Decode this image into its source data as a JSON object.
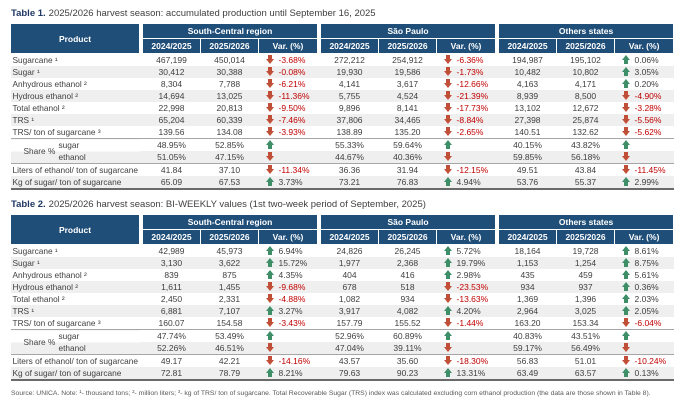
{
  "colors": {
    "header_bg": "#1F4E79",
    "positive_arrow": "#3E8E68",
    "negative_arrow": "#C14E36",
    "negative_text": "#C00000",
    "row_stripe": "#EFEFEF",
    "title_label": "#1F3864"
  },
  "icons": {
    "positive": "up-arrow-icon",
    "negative": "down-arrow-icon"
  },
  "footnote": "Source: UNICA. Note: ¹- thousand tons; ²- million liters; ³- kg of TRS/ ton of sugarcane. Total Recoverable Sugar (TRS) index was calculated excluding corn ethanol production (the data are those shown in Table 8).",
  "tables": [
    {
      "title_label": "Table 1.",
      "title_text": "2025/2026 harvest season: accumulated production until September 16, 2025",
      "product_header": "Product",
      "regions": [
        "South-Central region",
        "São Paulo",
        "Others states"
      ],
      "col_headers": [
        "2024/2025",
        "2025/2026",
        "Var. (%)"
      ],
      "rows": [
        {
          "label": "Sugarcane ¹",
          "regions": [
            {
              "y1": "467,199",
              "y2": "450,014",
              "dir": "down",
              "var": "-3.68%"
            },
            {
              "y1": "272,212",
              "y2": "254,912",
              "dir": "down",
              "var": "-6.36%"
            },
            {
              "y1": "194,987",
              "y2": "195,102",
              "dir": "up",
              "var": "0.06%"
            }
          ]
        },
        {
          "label": "Sugar ¹",
          "regions": [
            {
              "y1": "30,412",
              "y2": "30,388",
              "dir": "down",
              "var": "-0.08%"
            },
            {
              "y1": "19,930",
              "y2": "19,586",
              "dir": "down",
              "var": "-1.73%"
            },
            {
              "y1": "10,482",
              "y2": "10,802",
              "dir": "up",
              "var": "3.05%"
            }
          ]
        },
        {
          "label": "Anhydrous ethanol ²",
          "regions": [
            {
              "y1": "8,304",
              "y2": "7,788",
              "dir": "down",
              "var": "-6.21%"
            },
            {
              "y1": "4,141",
              "y2": "3,617",
              "dir": "down",
              "var": "-12.66%"
            },
            {
              "y1": "4,163",
              "y2": "4,171",
              "dir": "up",
              "var": "0.20%"
            }
          ]
        },
        {
          "label": "Hydrous ethanol ²",
          "regions": [
            {
              "y1": "14,694",
              "y2": "13,025",
              "dir": "down",
              "var": "-11.36%"
            },
            {
              "y1": "5,755",
              "y2": "4,524",
              "dir": "down",
              "var": "-21.39%"
            },
            {
              "y1": "8,939",
              "y2": "8,500",
              "dir": "down",
              "var": "-4.90%"
            }
          ]
        },
        {
          "label": "Total ethanol ²",
          "regions": [
            {
              "y1": "22,998",
              "y2": "20,813",
              "dir": "down",
              "var": "-9.50%"
            },
            {
              "y1": "9,896",
              "y2": "8,141",
              "dir": "down",
              "var": "-17.73%"
            },
            {
              "y1": "13,102",
              "y2": "12,672",
              "dir": "down",
              "var": "-3.28%"
            }
          ]
        },
        {
          "label": "TRS ¹",
          "regions": [
            {
              "y1": "65,204",
              "y2": "60,339",
              "dir": "down",
              "var": "-7.46%"
            },
            {
              "y1": "37,806",
              "y2": "34,465",
              "dir": "down",
              "var": "-8.84%"
            },
            {
              "y1": "27,398",
              "y2": "25,874",
              "dir": "down",
              "var": "-5.56%"
            }
          ]
        },
        {
          "label": "TRS/ ton of sugarcane ³",
          "regions": [
            {
              "y1": "139.56",
              "y2": "134.08",
              "dir": "down",
              "var": "-3.93%"
            },
            {
              "y1": "138.89",
              "y2": "135.20",
              "dir": "down",
              "var": "-2.65%"
            },
            {
              "y1": "140.51",
              "y2": "132.62",
              "dir": "down",
              "var": "-5.62%"
            }
          ]
        },
        {
          "group": "Share %",
          "label": "sugar",
          "regions": [
            {
              "y1": "48.95%",
              "y2": "52.85%",
              "dir": "up",
              "var": ""
            },
            {
              "y1": "55.33%",
              "y2": "59.64%",
              "dir": "up",
              "var": ""
            },
            {
              "y1": "40.15%",
              "y2": "43.82%",
              "dir": "up",
              "var": ""
            }
          ]
        },
        {
          "group": "Share %",
          "label": "ethanol",
          "regions": [
            {
              "y1": "51.05%",
              "y2": "47.15%",
              "dir": "down",
              "var": ""
            },
            {
              "y1": "44.67%",
              "y2": "40.36%",
              "dir": "down",
              "var": ""
            },
            {
              "y1": "59.85%",
              "y2": "56.18%",
              "dir": "down",
              "var": ""
            }
          ]
        },
        {
          "label": "Liters of ethanol/ ton of sugarcane",
          "regions": [
            {
              "y1": "41.84",
              "y2": "37.10",
              "dir": "down",
              "var": "-11.34%"
            },
            {
              "y1": "36.36",
              "y2": "31.94",
              "dir": "down",
              "var": "-12.15%"
            },
            {
              "y1": "49.51",
              "y2": "43.84",
              "dir": "down",
              "var": "-11.45%"
            }
          ]
        },
        {
          "label": "Kg of sugar/ ton of sugarcane",
          "regions": [
            {
              "y1": "65.09",
              "y2": "67.53",
              "dir": "up",
              "var": "3.73%"
            },
            {
              "y1": "73.21",
              "y2": "76.83",
              "dir": "up",
              "var": "4.94%"
            },
            {
              "y1": "53.76",
              "y2": "55.37",
              "dir": "up",
              "var": "2.99%"
            }
          ]
        }
      ]
    },
    {
      "title_label": "Table 2.",
      "title_text": "2025/2026 harvest season: BI-WEEKLY values (1st two-week period of September, 2025)",
      "product_header": "Product",
      "regions": [
        "South-Central region",
        "São Paulo",
        "Others states"
      ],
      "col_headers": [
        "2024/2025",
        "2025/2026",
        "Var. (%)"
      ],
      "rows": [
        {
          "label": "Sugarcane ¹",
          "regions": [
            {
              "y1": "42,989",
              "y2": "45,973",
              "dir": "up",
              "var": "6.94%"
            },
            {
              "y1": "24,826",
              "y2": "26,245",
              "dir": "up",
              "var": "5.72%"
            },
            {
              "y1": "18,164",
              "y2": "19,728",
              "dir": "up",
              "var": "8.61%"
            }
          ]
        },
        {
          "label": "Sugar ¹",
          "regions": [
            {
              "y1": "3,130",
              "y2": "3,622",
              "dir": "up",
              "var": "15.72%"
            },
            {
              "y1": "1,977",
              "y2": "2,368",
              "dir": "up",
              "var": "19.79%"
            },
            {
              "y1": "1,153",
              "y2": "1,254",
              "dir": "up",
              "var": "8.75%"
            }
          ]
        },
        {
          "label": "Anhydrous ethanol ²",
          "regions": [
            {
              "y1": "839",
              "y2": "875",
              "dir": "up",
              "var": "4.35%"
            },
            {
              "y1": "404",
              "y2": "416",
              "dir": "up",
              "var": "2.98%"
            },
            {
              "y1": "435",
              "y2": "459",
              "dir": "up",
              "var": "5.61%"
            }
          ]
        },
        {
          "label": "Hydrous ethanol ²",
          "regions": [
            {
              "y1": "1,611",
              "y2": "1,455",
              "dir": "down",
              "var": "-9.68%"
            },
            {
              "y1": "678",
              "y2": "518",
              "dir": "down",
              "var": "-23.53%"
            },
            {
              "y1": "934",
              "y2": "937",
              "dir": "up",
              "var": "0.36%"
            }
          ]
        },
        {
          "label": "Total ethanol ²",
          "regions": [
            {
              "y1": "2,450",
              "y2": "2,331",
              "dir": "down",
              "var": "-4.88%"
            },
            {
              "y1": "1,082",
              "y2": "934",
              "dir": "down",
              "var": "-13.63%"
            },
            {
              "y1": "1,369",
              "y2": "1,396",
              "dir": "up",
              "var": "2.03%"
            }
          ]
        },
        {
          "label": "TRS ¹",
          "regions": [
            {
              "y1": "6,881",
              "y2": "7,107",
              "dir": "up",
              "var": "3.27%"
            },
            {
              "y1": "3,917",
              "y2": "4,082",
              "dir": "up",
              "var": "4.20%"
            },
            {
              "y1": "2,964",
              "y2": "3,025",
              "dir": "up",
              "var": "2.05%"
            }
          ]
        },
        {
          "label": "TRS/ ton of sugarcane ³",
          "regions": [
            {
              "y1": "160.07",
              "y2": "154.58",
              "dir": "down",
              "var": "-3.43%"
            },
            {
              "y1": "157.79",
              "y2": "155.52",
              "dir": "down",
              "var": "-1.44%"
            },
            {
              "y1": "163.20",
              "y2": "153.34",
              "dir": "down",
              "var": "-6.04%"
            }
          ]
        },
        {
          "group": "Share %",
          "label": "sugar",
          "regions": [
            {
              "y1": "47.74%",
              "y2": "53.49%",
              "dir": "up",
              "var": ""
            },
            {
              "y1": "52.96%",
              "y2": "60.89%",
              "dir": "up",
              "var": ""
            },
            {
              "y1": "40.83%",
              "y2": "43.51%",
              "dir": "up",
              "var": ""
            }
          ]
        },
        {
          "group": "Share %",
          "label": "ethanol",
          "regions": [
            {
              "y1": "52.26%",
              "y2": "46.51%",
              "dir": "down",
              "var": ""
            },
            {
              "y1": "47.04%",
              "y2": "39.11%",
              "dir": "down",
              "var": ""
            },
            {
              "y1": "59.17%",
              "y2": "56.49%",
              "dir": "down",
              "var": ""
            }
          ]
        },
        {
          "label": "Liters of ethanol/ ton of sugarcane",
          "regions": [
            {
              "y1": "49.17",
              "y2": "42.21",
              "dir": "down",
              "var": "-14.16%"
            },
            {
              "y1": "43.57",
              "y2": "35.60",
              "dir": "down",
              "var": "-18.30%"
            },
            {
              "y1": "56.83",
              "y2": "51.01",
              "dir": "down",
              "var": "-10.24%"
            }
          ]
        },
        {
          "label": "Kg of sugar/ ton of sugarcane",
          "regions": [
            {
              "y1": "72.81",
              "y2": "78.79",
              "dir": "up",
              "var": "8.21%"
            },
            {
              "y1": "79.63",
              "y2": "90.23",
              "dir": "up",
              "var": "13.31%"
            },
            {
              "y1": "63.49",
              "y2": "63.57",
              "dir": "up",
              "var": "0.13%"
            }
          ]
        }
      ]
    }
  ]
}
